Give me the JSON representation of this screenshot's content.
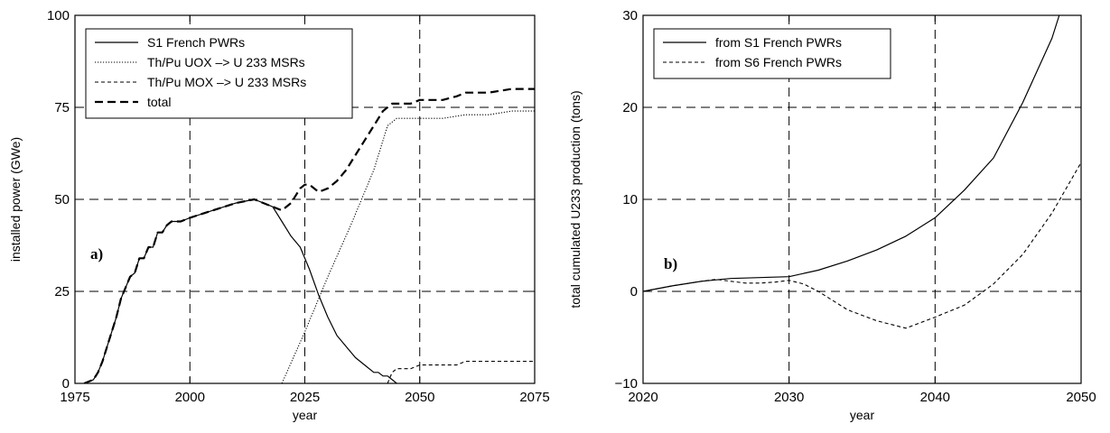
{
  "chart_data": [
    {
      "type": "line",
      "panel_label": "a)",
      "xlabel": "year",
      "ylabel": "installed power (GWe)",
      "xlim": [
        1975,
        2075
      ],
      "ylim": [
        0,
        100
      ],
      "xticks": [
        "1975",
        "2000",
        "2025",
        "2050",
        "2075"
      ],
      "yticks": [
        "0",
        "25",
        "50",
        "75",
        "100"
      ],
      "x_tick_values": [
        1975,
        2000,
        2025,
        2050,
        2075
      ],
      "y_tick_values": [
        0,
        25,
        50,
        75,
        100
      ],
      "grid": true,
      "legend_position": "top-left",
      "series": [
        {
          "name": "S1 French PWRs",
          "style": "solid",
          "x": [
            1977,
            1979,
            1980,
            1981,
            1982,
            1983,
            1984,
            1985,
            1986,
            1987,
            1988,
            1989,
            1990,
            1991,
            1992,
            1993,
            1994,
            1995,
            1996,
            1998,
            2000,
            2005,
            2010,
            2014,
            2016,
            2018,
            2020,
            2022,
            2024,
            2026,
            2028,
            2030,
            2032,
            2034,
            2036,
            2038,
            2040,
            2041,
            2042,
            2043,
            2044,
            2045
          ],
          "y": [
            0,
            1,
            3,
            6,
            10,
            14,
            18,
            23,
            26,
            29,
            30,
            34,
            34,
            37,
            37,
            41,
            41,
            43,
            44,
            44,
            45,
            47,
            49,
            50,
            49,
            48,
            44,
            40,
            37,
            31,
            24,
            18,
            13,
            10,
            7,
            5,
            3,
            3,
            2,
            2,
            1,
            0
          ]
        },
        {
          "name": "Th/Pu UOX –> U 233 MSRs",
          "style": "dotted",
          "x": [
            2020,
            2025,
            2030,
            2035,
            2040,
            2043,
            2045,
            2050,
            2055,
            2060,
            2065,
            2070,
            2075
          ],
          "y": [
            0,
            14,
            29,
            43,
            58,
            70,
            72,
            72,
            72,
            73,
            73,
            74,
            74
          ]
        },
        {
          "name": "Th/Pu MOX –> U 233 MSRs",
          "style": "dashed",
          "x": [
            2043,
            2044,
            2045,
            2046,
            2048,
            2050,
            2052,
            2055,
            2058,
            2060,
            2065,
            2070,
            2075
          ],
          "y": [
            0,
            3,
            4,
            4,
            4,
            5,
            5,
            5,
            5,
            6,
            6,
            6,
            6
          ]
        },
        {
          "name": "total",
          "style": "long-dash",
          "x": [
            1977,
            1979,
            1980,
            1981,
            1982,
            1983,
            1984,
            1985,
            1986,
            1987,
            1988,
            1989,
            1990,
            1991,
            1992,
            1993,
            1994,
            1995,
            1996,
            1998,
            2000,
            2005,
            2010,
            2014,
            2016,
            2018,
            2020,
            2022,
            2024,
            2025,
            2026,
            2028,
            2030,
            2032,
            2034,
            2036,
            2038,
            2040,
            2042,
            2044,
            2048,
            2050,
            2055,
            2058,
            2060,
            2065,
            2070,
            2075
          ],
          "y": [
            0,
            1,
            3,
            6,
            10,
            14,
            18,
            23,
            26,
            29,
            30,
            34,
            34,
            37,
            37,
            41,
            41,
            43,
            44,
            44,
            45,
            47,
            49,
            50,
            49,
            48,
            47,
            49,
            53,
            54,
            54,
            52,
            53,
            55,
            58,
            62,
            66,
            70,
            74,
            76,
            76,
            77,
            77,
            78,
            79,
            79,
            80,
            80
          ]
        }
      ]
    },
    {
      "type": "line",
      "panel_label": "b)",
      "xlabel": "year",
      "ylabel": "total cumulated U233 production (tons)",
      "xlim": [
        2020,
        2050
      ],
      "ylim": [
        -10,
        30
      ],
      "xticks": [
        "2020",
        "2030",
        "2040",
        "2050"
      ],
      "yticks": [
        "−10",
        "0",
        "10",
        "20",
        "30"
      ],
      "x_tick_values": [
        2020,
        2030,
        2040,
        2050
      ],
      "y_tick_values": [
        -10,
        0,
        10,
        20,
        30
      ],
      "grid": true,
      "legend_position": "top-left",
      "series": [
        {
          "name": "from S1 French PWRs",
          "style": "solid",
          "x": [
            2020,
            2022,
            2024,
            2026,
            2028,
            2030,
            2032,
            2034,
            2036,
            2038,
            2040,
            2042,
            2044,
            2046,
            2048,
            2048.5
          ],
          "y": [
            0,
            0.6,
            1.1,
            1.4,
            1.5,
            1.6,
            2.3,
            3.3,
            4.5,
            6.0,
            8.0,
            11.0,
            14.5,
            20.5,
            27.5,
            30
          ]
        },
        {
          "name": "from S6 French PWRs",
          "style": "dashed",
          "x": [
            2020,
            2022,
            2024,
            2025,
            2026,
            2027,
            2028,
            2029,
            2030,
            2031,
            2032,
            2033,
            2034,
            2036,
            2038,
            2040,
            2042,
            2044,
            2046,
            2048,
            2050
          ],
          "y": [
            0,
            0.6,
            1.1,
            1.3,
            1.1,
            0.9,
            0.9,
            1.0,
            1.2,
            0.8,
            0.0,
            -1.0,
            -2.0,
            -3.2,
            -4.0,
            -2.8,
            -1.5,
            0.8,
            4.0,
            8.5,
            14.0
          ]
        }
      ]
    }
  ]
}
